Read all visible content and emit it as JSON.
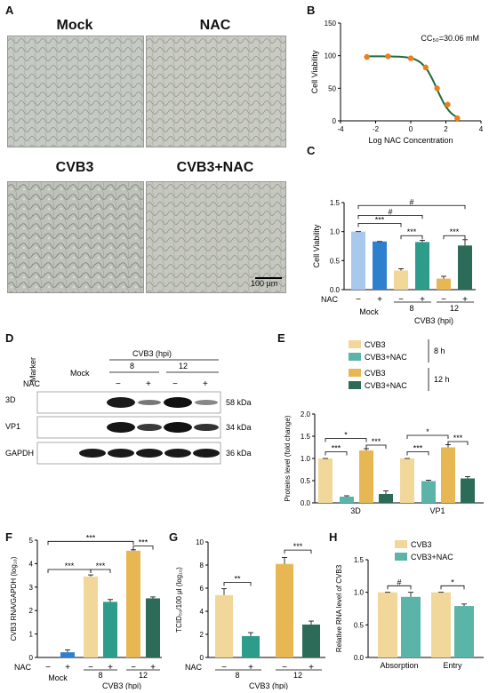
{
  "panels": {
    "A": "A",
    "B": "B",
    "C": "C",
    "D": "D",
    "E": "E",
    "F": "F",
    "G": "G",
    "H": "H"
  },
  "micrographs": {
    "labels": [
      "Mock",
      "NAC",
      "CVB3",
      "CVB3+NAC"
    ],
    "scale_bar": "100 μm"
  },
  "chart_B": {
    "type": "line",
    "annotation": "CC₅₀=30.06 mM",
    "xlabel": "Log NAC Concentration",
    "ylabel": "Cell Viability",
    "xticks": [
      "-4",
      "-2",
      "0",
      "2",
      "4"
    ],
    "yticks": [
      "0",
      "50",
      "100",
      "150"
    ],
    "xlim": [
      -4,
      4
    ],
    "ylim": [
      0,
      150
    ],
    "points": [
      {
        "x": -2.5,
        "y": 98
      },
      {
        "x": -1.3,
        "y": 99
      },
      {
        "x": 0,
        "y": 96
      },
      {
        "x": 0.85,
        "y": 82
      },
      {
        "x": 1.5,
        "y": 50
      },
      {
        "x": 2.1,
        "y": 25
      },
      {
        "x": 2.65,
        "y": 4
      }
    ],
    "marker_color": "#e8801c",
    "curve_color": "#1e6b3c"
  },
  "chart_C": {
    "type": "bar",
    "ylabel": "Cell Viability",
    "yticks": [
      "0.0",
      "0.5",
      "1.0",
      "1.5"
    ],
    "ylim": [
      0,
      1.5
    ],
    "row_label": "NAC",
    "nac_signs": [
      "−",
      "+",
      "−",
      "+",
      "−",
      "+"
    ],
    "group_labels": [
      "Mock",
      "8",
      "12"
    ],
    "axis_title": "CVB3 (hpi)",
    "values": [
      1.0,
      0.83,
      0.33,
      0.82,
      0.19,
      0.76
    ],
    "errors": [
      0,
      0,
      0.03,
      0.03,
      0.04,
      0.1
    ],
    "colors": [
      "#a9c9ec",
      "#2f7fcf",
      "#f1d89a",
      "#2e9c8a",
      "#e7b754",
      "#2c6b57"
    ],
    "sig_labels": [
      "***",
      "***",
      "***",
      "#",
      "#"
    ]
  },
  "blot_D": {
    "marker": "Marker",
    "mock": "Mock",
    "cvb3": "CVB3 (hpi)",
    "times": [
      "8",
      "12"
    ],
    "nac_label": "NAC",
    "nac_signs": [
      "−",
      "+",
      "−",
      "+"
    ],
    "rows": [
      {
        "name": "3D",
        "size": "58 kDa"
      },
      {
        "name": "VP1",
        "size": "34 kDa"
      },
      {
        "name": "GAPDH",
        "size": "36 kDa"
      }
    ]
  },
  "chart_E": {
    "type": "bar",
    "ylabel": "Proteins level (fold change)",
    "yticks": [
      "0.0",
      "0.5",
      "1.0",
      "1.5",
      "2.0"
    ],
    "ylim": [
      0,
      2.0
    ],
    "categories": [
      "3D",
      "VP1"
    ],
    "legend": [
      {
        "name": "CVB3",
        "color": "#f1d89a"
      },
      {
        "name": "CVB3+NAC",
        "color": "#5ab5a8"
      },
      {
        "name": "CVB3",
        "color": "#e7b754"
      },
      {
        "name": "CVB3+NAC",
        "color": "#2c6b57"
      }
    ],
    "legend_groups": [
      "8 h",
      "12 h"
    ],
    "values": [
      [
        1.0,
        0.14,
        1.18,
        0.2
      ],
      [
        1.0,
        0.49,
        1.25,
        0.55
      ]
    ],
    "errors": [
      [
        0,
        0.02,
        0.04,
        0.07
      ],
      [
        0,
        0.02,
        0.06,
        0.04
      ]
    ],
    "sig_labels": [
      "***",
      "***",
      "*",
      "***",
      "***",
      "*"
    ]
  },
  "chart_F": {
    "type": "bar",
    "ylabel": "CVB3 RNA/GAPDH (log₁₀)",
    "yticks": [
      "0",
      "1",
      "2",
      "3",
      "4",
      "5"
    ],
    "ylim": [
      0,
      5
    ],
    "row_label": "NAC",
    "nac_signs": [
      "−",
      "+",
      "−",
      "+",
      "−",
      "+"
    ],
    "group_labels": [
      "Mock",
      "8",
      "12"
    ],
    "axis_title": "CVB3 (hpi)",
    "values": [
      0,
      0.22,
      3.45,
      2.37,
      4.55,
      2.52
    ],
    "errors": [
      0,
      0.1,
      0.07,
      0.1,
      0.04,
      0.06
    ],
    "colors": [
      "#a9c9ec",
      "#2f7fcf",
      "#f1d89a",
      "#2e9c8a",
      "#e7b754",
      "#2c6b57"
    ],
    "sig_labels": [
      "***",
      "***",
      "***",
      "***"
    ]
  },
  "chart_G": {
    "type": "bar",
    "ylabel": "TCID₅₀/100 μl (log₁₀)",
    "yticks": [
      "0",
      "2",
      "4",
      "6",
      "8",
      "10"
    ],
    "ylim": [
      0,
      10
    ],
    "row_label": "NAC",
    "nac_signs": [
      "−",
      "+",
      "−",
      "+"
    ],
    "group_labels": [
      "8",
      "12"
    ],
    "axis_title": "CVB3 (hpi)",
    "values": [
      5.4,
      1.85,
      8.1,
      2.85
    ],
    "errors": [
      0.55,
      0.3,
      0.55,
      0.3
    ],
    "colors": [
      "#f1d89a",
      "#2e9c8a",
      "#e7b754",
      "#2c6b57"
    ],
    "sig_labels": [
      "**",
      "***"
    ]
  },
  "chart_H": {
    "type": "bar",
    "ylabel": "Relative RNA level of CVB3",
    "yticks": [
      "0.0",
      "0.5",
      "1.0",
      "1.5"
    ],
    "ylim": [
      0,
      1.5
    ],
    "categories": [
      "Absorption",
      "Entry"
    ],
    "legend": [
      {
        "name": "CVB3",
        "color": "#f1d89a"
      },
      {
        "name": "CVB3+NAC",
        "color": "#5ab5a8"
      }
    ],
    "values": [
      [
        1.0,
        0.93
      ],
      [
        1.0,
        0.79
      ]
    ],
    "errors": [
      [
        0,
        0.07
      ],
      [
        0,
        0.03
      ]
    ],
    "sig_labels": [
      "#",
      "*"
    ]
  }
}
